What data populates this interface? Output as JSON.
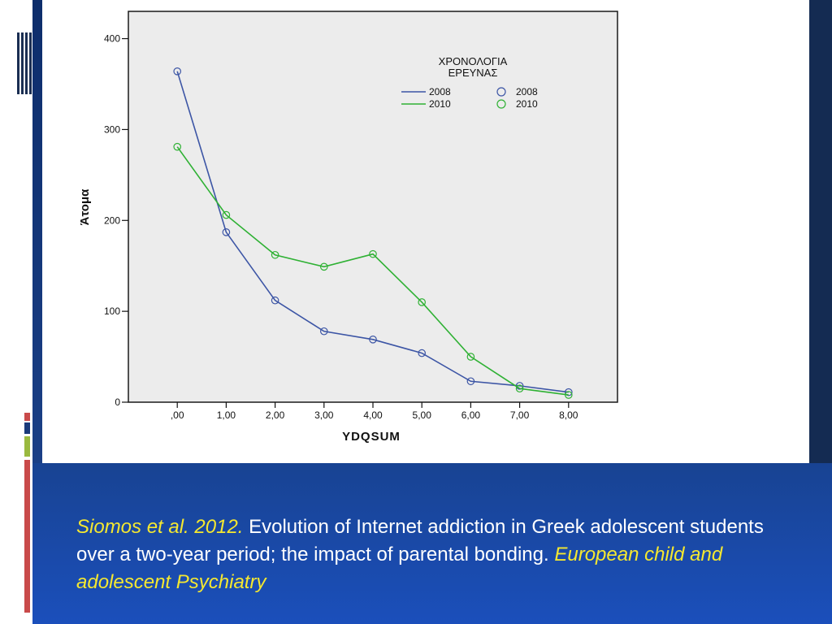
{
  "chart_data": {
    "type": "line",
    "title": "",
    "xlabel": "YDQSUM",
    "ylabel": "Άτομα",
    "categories": [
      ",00",
      "1,00",
      "2,00",
      "3,00",
      "4,00",
      "5,00",
      "6,00",
      "7,00",
      "8,00"
    ],
    "x": [
      0,
      1,
      2,
      3,
      4,
      5,
      6,
      7,
      8
    ],
    "xlim": [
      -1,
      9
    ],
    "ylim": [
      0,
      430
    ],
    "yticks": [
      0,
      100,
      200,
      300,
      400
    ],
    "ytick_labels": [
      "0",
      "100",
      "200",
      "300",
      "400"
    ],
    "legend": {
      "title_line1": "ΧΡΟΝΟΛΟΓΙΑ",
      "title_line2": "ΕΡΕΥΝΑΣ",
      "placement": "top-right"
    },
    "series": [
      {
        "name": "2008",
        "color": "#3c55a5",
        "values": [
          364,
          187,
          112,
          78,
          69,
          54,
          23,
          18,
          11
        ]
      },
      {
        "name": "2010",
        "color": "#2fb134",
        "values": [
          281,
          206,
          162,
          149,
          163,
          110,
          50,
          15,
          8
        ]
      }
    ],
    "grid": false,
    "plot_background": "#ececec"
  },
  "citation": {
    "authors_year": "Siomos et al. 2012.",
    "title": " Evolution of Internet addiction in Greek adolescent students over a two-year period; the impact of parental bonding.",
    "journal": " European child and adolescent Psychiatry"
  },
  "colors": {
    "accent_yellow": "#f5e830",
    "accent_red": "#c94a4a",
    "accent_navy": "#1a3a7a",
    "accent_green": "#9ab93f"
  }
}
